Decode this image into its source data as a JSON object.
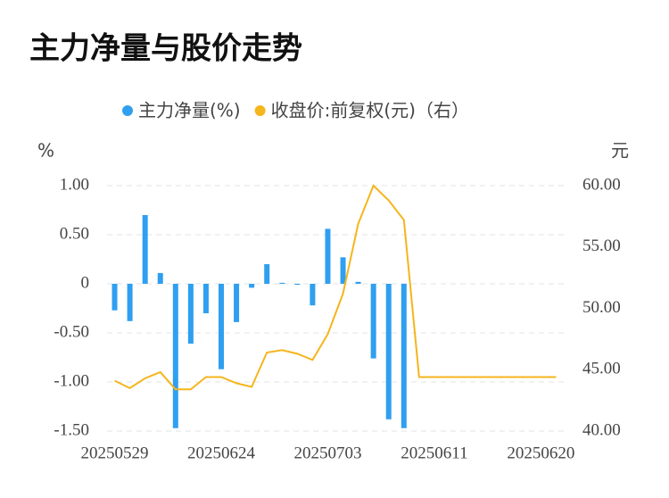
{
  "chart_data": {
    "type": "bar-line",
    "title": "主力净量与股价走势",
    "y_label": "%",
    "y2_label": "元",
    "categories": [
      "20250529",
      null,
      null,
      null,
      null,
      null,
      null,
      "20250624",
      null,
      null,
      null,
      null,
      null,
      null,
      "20250703",
      null,
      null,
      null,
      null,
      null,
      null,
      "20250611",
      null,
      null,
      null,
      null,
      null,
      null,
      "20250620",
      null
    ],
    "series": [
      {
        "name": "主力净量(%)",
        "type": "bar",
        "color": "#2f9ff0",
        "values": [
          -0.27,
          -0.38,
          0.7,
          0.11,
          -1.47,
          -0.61,
          -0.3,
          -0.87,
          -0.39,
          -0.04,
          0.2,
          0.01,
          -0.01,
          -0.22,
          0.56,
          0.27,
          0.02,
          -0.76,
          -1.38,
          -1.47,
          null,
          null,
          null,
          null,
          null,
          null,
          null,
          null,
          null,
          null
        ]
      },
      {
        "name": "收盘价:前复权(元)（右）",
        "type": "line",
        "axis": "y2",
        "color": "#f5b51c",
        "values": [
          44.1,
          43.5,
          44.3,
          44.8,
          43.4,
          43.4,
          44.4,
          44.4,
          43.9,
          43.6,
          46.4,
          46.6,
          46.3,
          45.8,
          47.9,
          51.2,
          56.9,
          60.0,
          58.8,
          57.2,
          44.4,
          44.4,
          44.4,
          44.4,
          44.4,
          44.4,
          44.4,
          44.4,
          44.4,
          44.4
        ]
      }
    ],
    "ylim": [
      -1.5,
      1.0
    ],
    "yticks": [
      {
        "value": -1.5,
        "label": "-1.50"
      },
      {
        "value": -1.0,
        "label": "-1.00"
      },
      {
        "value": -0.5,
        "label": "-0.50"
      },
      0,
      {
        "value": 0.5,
        "label": "0.50"
      },
      {
        "value": 1.0,
        "label": "1.00"
      }
    ],
    "y2lim": [
      40,
      60
    ],
    "y2ticks": [
      {
        "value": 40,
        "label": "40.00"
      },
      {
        "value": 45,
        "label": "45.00"
      },
      {
        "value": 50,
        "label": "50.00"
      },
      {
        "value": 55,
        "label": "55.00"
      },
      {
        "value": 60,
        "label": "60.00"
      }
    ],
    "grid": true
  }
}
